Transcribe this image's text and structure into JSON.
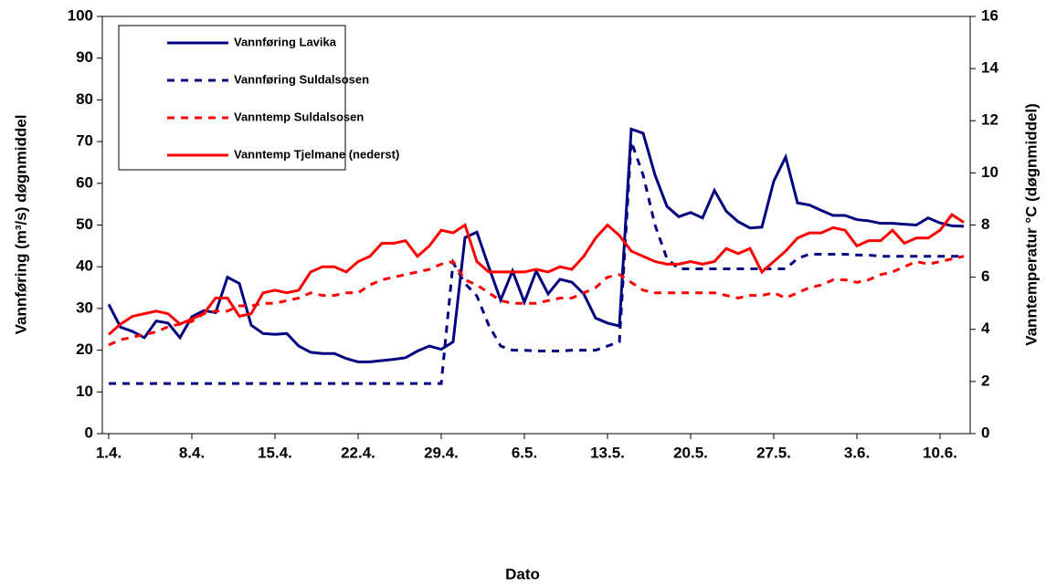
{
  "chart_data": {
    "type": "line",
    "x_label": "Dato",
    "y_label": "Vannføring (m³/s) døgnmiddel",
    "y2_label": "Vanntemperatur   °C (døgnmiddel)",
    "categories": [
      "1.4.",
      null,
      null,
      null,
      null,
      null,
      null,
      "8.4.",
      null,
      null,
      null,
      null,
      null,
      null,
      "15.4.",
      null,
      null,
      null,
      null,
      null,
      null,
      "22.4.",
      null,
      null,
      null,
      null,
      null,
      null,
      "29.4.",
      null,
      null,
      null,
      null,
      null,
      null,
      "6.5.",
      null,
      null,
      null,
      null,
      null,
      null,
      "13.5.",
      null,
      null,
      null,
      null,
      null,
      null,
      "20.5.",
      null,
      null,
      null,
      null,
      null,
      null,
      "27.5.",
      null,
      null,
      null,
      null,
      null,
      null,
      "3.6.",
      null,
      null,
      null,
      null,
      null,
      null,
      "10.6.",
      null,
      null
    ],
    "ylim": [
      0,
      100
    ],
    "yticks": [
      0,
      10,
      20,
      30,
      40,
      50,
      60,
      70,
      80,
      90,
      100
    ],
    "y2lim": [
      0,
      16
    ],
    "y2ticks": [
      0,
      2,
      4,
      6,
      8,
      10,
      12,
      14,
      16
    ],
    "legend": "upper left",
    "series": [
      {
        "name": "Vannføring Lavika",
        "color": "#000080",
        "dashed": false,
        "values": [
          31,
          25.5,
          24.5,
          23,
          27,
          26.5,
          23,
          28,
          29.5,
          29,
          37.5,
          36,
          26,
          24,
          23.8,
          24,
          21,
          19.5,
          19.2,
          19.2,
          18,
          17.2,
          17.2,
          17.5,
          17.8,
          18.2,
          19.8,
          21,
          20.2,
          22,
          47,
          48.3,
          40,
          32,
          39,
          31.5,
          39,
          33.5,
          37,
          36.3,
          33.5,
          27.7,
          26.5,
          25.8,
          73,
          72,
          62,
          54.5,
          52,
          53,
          51.7,
          58.3,
          53.3,
          50.8,
          49.3,
          49.5,
          60.5,
          66.3,
          55.3,
          54.8,
          53.5,
          52.3,
          52.3,
          51.3,
          51,
          50.4,
          50.4,
          50.2,
          50,
          51.7,
          50.5,
          49.8,
          49.7
        ]
      },
      {
        "name": "Vannføring Suldalsosen",
        "color": "#000080",
        "dashed": true,
        "values": [
          12,
          12,
          12,
          12,
          12,
          12,
          12,
          12,
          12,
          12,
          12,
          12,
          12,
          12,
          12,
          12,
          12,
          12,
          12,
          12,
          12,
          12,
          12,
          12,
          12,
          12,
          12,
          12,
          12,
          41,
          36,
          33,
          26,
          21,
          20,
          20,
          19.8,
          19.8,
          19.8,
          20,
          20,
          20,
          21,
          22,
          70,
          62,
          50,
          42,
          39.5,
          39.5,
          39.5,
          39.5,
          39.5,
          39.5,
          39.5,
          39.5,
          39.5,
          39.5,
          42,
          43,
          43,
          43,
          43,
          42.8,
          42.8,
          42.5,
          42.5,
          42.5,
          42.5,
          42.5,
          42.5,
          42.5,
          42.5
        ]
      },
      {
        "name": "Vanntemp Suldalsosen",
        "color": "#ff0000",
        "dashed": true,
        "axis": "y2",
        "values": [
          3.4,
          3.6,
          3.7,
          3.8,
          3.9,
          4.1,
          4.2,
          4.3,
          4.6,
          4.7,
          4.7,
          4.9,
          4.9,
          5.0,
          5.0,
          5.1,
          5.2,
          5.4,
          5.3,
          5.3,
          5.4,
          5.4,
          5.7,
          5.9,
          6.0,
          6.1,
          6.2,
          6.3,
          6.5,
          6.6,
          5.9,
          5.7,
          5.4,
          5.1,
          5.0,
          5.0,
          5.0,
          5.1,
          5.2,
          5.2,
          5.4,
          5.6,
          6.0,
          6.1,
          5.8,
          5.5,
          5.4,
          5.4,
          5.4,
          5.4,
          5.4,
          5.4,
          5.3,
          5.2,
          5.3,
          5.3,
          5.4,
          5.2,
          5.4,
          5.6,
          5.7,
          5.9,
          5.9,
          5.8,
          5.9,
          6.1,
          6.2,
          6.4,
          6.6,
          6.5,
          6.6,
          6.7,
          6.8
        ]
      },
      {
        "name": "Vanntemp Tjelmane (nederst)",
        "color": "#ff0000",
        "dashed": false,
        "axis": "y2",
        "values": [
          3.8,
          4.2,
          4.5,
          4.6,
          4.7,
          4.6,
          4.2,
          4.4,
          4.6,
          5.2,
          5.2,
          4.5,
          4.6,
          5.4,
          5.5,
          5.4,
          5.5,
          6.2,
          6.4,
          6.4,
          6.2,
          6.6,
          6.8,
          7.3,
          7.3,
          7.4,
          6.8,
          7.2,
          7.8,
          7.7,
          8.0,
          6.6,
          6.2,
          6.2,
          6.2,
          6.2,
          6.3,
          6.2,
          6.4,
          6.3,
          6.8,
          7.5,
          8.0,
          7.6,
          7.0,
          6.8,
          6.6,
          6.5,
          6.5,
          6.6,
          6.5,
          6.6,
          7.1,
          6.9,
          7.1,
          6.2,
          6.6,
          7.0,
          7.5,
          7.7,
          7.7,
          7.9,
          7.8,
          7.2,
          7.4,
          7.4,
          7.8,
          7.3,
          7.5,
          7.5,
          7.8,
          8.4,
          8.1
        ]
      }
    ]
  }
}
